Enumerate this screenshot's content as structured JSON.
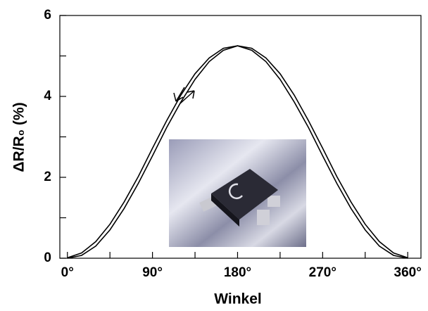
{
  "chart_data": {
    "type": "line",
    "xlabel": "Winkel",
    "ylabel": "ΔR/R₀ (%)",
    "x": [
      0,
      15,
      30,
      45,
      60,
      75,
      90,
      105,
      120,
      135,
      150,
      165,
      180,
      195,
      210,
      225,
      240,
      255,
      270,
      285,
      300,
      315,
      330,
      345,
      360
    ],
    "series": [
      {
        "color": "#000000",
        "values": [
          0,
          0.07,
          0.3,
          0.7,
          1.23,
          1.85,
          2.53,
          3.23,
          3.86,
          4.42,
          4.86,
          5.14,
          5.25,
          5.19,
          4.95,
          4.56,
          4.03,
          3.4,
          2.72,
          2.02,
          1.39,
          0.84,
          0.41,
          0.13,
          0.01
        ]
      },
      {
        "color": "#000000",
        "values": [
          0.01,
          0.13,
          0.41,
          0.84,
          1.39,
          2.02,
          2.72,
          3.4,
          4.03,
          4.56,
          4.95,
          5.19,
          5.25,
          5.14,
          4.86,
          4.42,
          3.86,
          3.23,
          2.53,
          1.85,
          1.23,
          0.7,
          0.3,
          0.07,
          0
        ]
      }
    ],
    "xlim": [
      -8,
      374
    ],
    "ylim": [
      0,
      6
    ],
    "xticks": [
      {
        "value": 0,
        "label": "0°"
      },
      {
        "value": 90,
        "label": "90°"
      },
      {
        "value": 180,
        "label": "180°"
      },
      {
        "value": 270,
        "label": "270°"
      },
      {
        "value": 360,
        "label": "360°"
      }
    ],
    "xminorticks": [
      45,
      135,
      225,
      315
    ],
    "yticks": [
      0,
      2,
      4,
      6
    ],
    "yminorticks": [
      1,
      3,
      5
    ]
  }
}
